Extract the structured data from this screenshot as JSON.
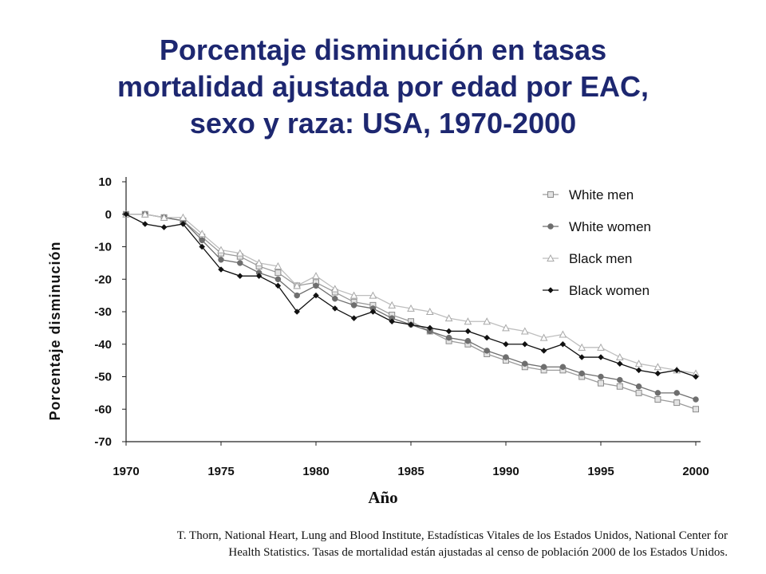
{
  "title_lines": [
    "Porcentaje disminución en tasas",
    "mortalidad ajustada por edad por EAC,",
    "sexo y raza: USA, 1970-2000"
  ],
  "source_lines": [
    "T. Thorn, National Heart, Lung and Blood Institute, Estadísticas Vitales de los Estados Unidos, National Center for",
    "Health Statistics.  Tasas de mortalidad están ajustadas al censo de población 2000 de los Estados Unidos."
  ],
  "colors": {
    "title": "#1d2770"
  },
  "chart_data": {
    "type": "line",
    "xlabel": "Año",
    "ylabel": "Porcentaje disminución",
    "xlim": [
      1970,
      2000
    ],
    "ylim": [
      -70,
      10
    ],
    "x_ticks": [
      1970,
      1975,
      1980,
      1985,
      1990,
      1995,
      2000
    ],
    "y_ticks": [
      10,
      0,
      -10,
      -20,
      -30,
      -40,
      -50,
      -60,
      -70
    ],
    "grid": false,
    "legend_position": "top-right",
    "x": [
      1970,
      1971,
      1972,
      1973,
      1974,
      1975,
      1976,
      1977,
      1978,
      1979,
      1980,
      1981,
      1982,
      1983,
      1984,
      1985,
      1986,
      1987,
      1988,
      1989,
      1990,
      1991,
      1992,
      1993,
      1994,
      1995,
      1996,
      1997,
      1998,
      1999,
      2000
    ],
    "series": [
      {
        "name": "White men",
        "color": "#9a9a9a",
        "marker": "square",
        "values": [
          0,
          0,
          -1,
          -2,
          -7,
          -12,
          -13,
          -16,
          -18,
          -22,
          -21,
          -24,
          -27,
          -28,
          -31,
          -33,
          -36,
          -39,
          -40,
          -43,
          -45,
          -47,
          -48,
          -48,
          -50,
          -52,
          -53,
          -55,
          -57,
          -58,
          -60
        ]
      },
      {
        "name": "White women",
        "color": "#6e6e6e",
        "marker": "circle",
        "values": [
          0,
          0,
          -1,
          -2,
          -8,
          -14,
          -15,
          -18,
          -20,
          -25,
          -22,
          -26,
          -28,
          -29,
          -32,
          -34,
          -36,
          -38,
          -39,
          -42,
          -44,
          -46,
          -47,
          -47,
          -49,
          -50,
          -51,
          -53,
          -55,
          -55,
          -57
        ]
      },
      {
        "name": "Black men",
        "color": "#bdbdbd",
        "marker": "triangle",
        "values": [
          0,
          0,
          -1,
          -1,
          -6,
          -11,
          -12,
          -15,
          -16,
          -22,
          -19,
          -23,
          -25,
          -25,
          -28,
          -29,
          -30,
          -32,
          -33,
          -33,
          -35,
          -36,
          -38,
          -37,
          -41,
          -41,
          -44,
          -46,
          -47,
          -48,
          -49
        ]
      },
      {
        "name": "Black women",
        "color": "#111111",
        "marker": "diamond",
        "values": [
          0,
          -3,
          -4,
          -3,
          -10,
          -17,
          -19,
          -19,
          -22,
          -30,
          -25,
          -29,
          -32,
          -30,
          -33,
          -34,
          -35,
          -36,
          -36,
          -38,
          -40,
          -40,
          -42,
          -40,
          -44,
          -44,
          -46,
          -48,
          -49,
          -48,
          -50
        ]
      }
    ]
  }
}
